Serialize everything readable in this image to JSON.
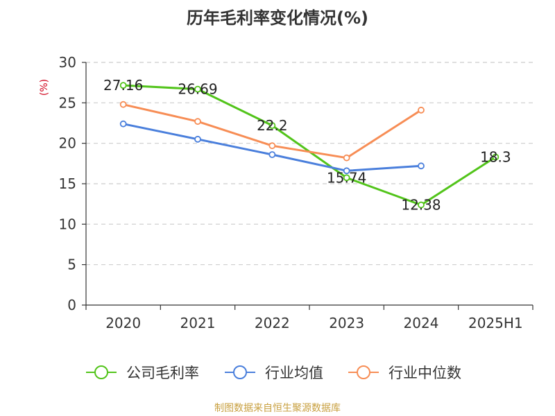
{
  "chart_data": {
    "type": "line",
    "title": "历年毛利率变化情况(%)",
    "ylabel": "(%)",
    "categories": [
      "2020",
      "2021",
      "2022",
      "2023",
      "2024",
      "2025H1"
    ],
    "ylim": [
      0,
      30
    ],
    "yticks": [
      0,
      5,
      10,
      15,
      20,
      25,
      30
    ],
    "grid": true,
    "legend_position": "bottom",
    "series": [
      {
        "name": "公司毛利率",
        "color": "#52c41a",
        "values": [
          27.16,
          26.69,
          22.2,
          15.74,
          12.38,
          18.3
        ],
        "labels": [
          "27.16",
          "26.69",
          "22.2",
          "15.74",
          "12.38",
          "18.3"
        ]
      },
      {
        "name": "行业均值",
        "color": "#4a7fdc",
        "values": [
          22.4,
          20.5,
          18.6,
          16.6,
          17.2,
          null
        ]
      },
      {
        "name": "行业中位数",
        "color": "#f78d55",
        "values": [
          24.8,
          22.7,
          19.7,
          18.2,
          24.1,
          null
        ]
      }
    ]
  },
  "source": "制图数据来自恒生聚源数据库"
}
